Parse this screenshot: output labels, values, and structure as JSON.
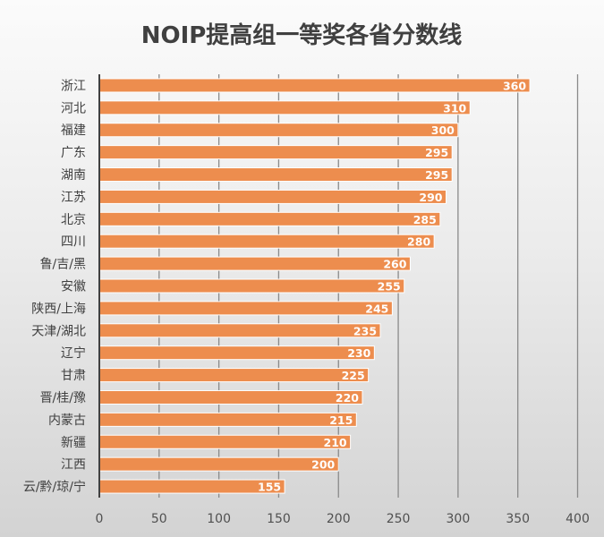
{
  "chart_data": {
    "type": "bar",
    "orientation": "horizontal",
    "title": "NOIP提高组一等奖各省分数线",
    "xlabel": "",
    "ylabel": "",
    "categories": [
      "浙江",
      "河北",
      "福建",
      "广东",
      "湖南",
      "江苏",
      "北京",
      "四川",
      "鲁/吉/黑",
      "安徽",
      "陕西/上海",
      "天津/湖北",
      "辽宁",
      "甘肃",
      "晋/桂/豫",
      "内蒙古",
      "新疆",
      "江西",
      "云/黔/琼/宁"
    ],
    "values": [
      360,
      310,
      300,
      295,
      295,
      290,
      285,
      280,
      260,
      255,
      245,
      235,
      230,
      225,
      220,
      215,
      210,
      200,
      155
    ],
    "xlim": [
      0,
      400
    ],
    "xticks": [
      0,
      50,
      100,
      150,
      200,
      250,
      300,
      350,
      400
    ],
    "grid": true,
    "data_labels": true,
    "legend": "none",
    "bar_color": "#ed8d4e"
  }
}
